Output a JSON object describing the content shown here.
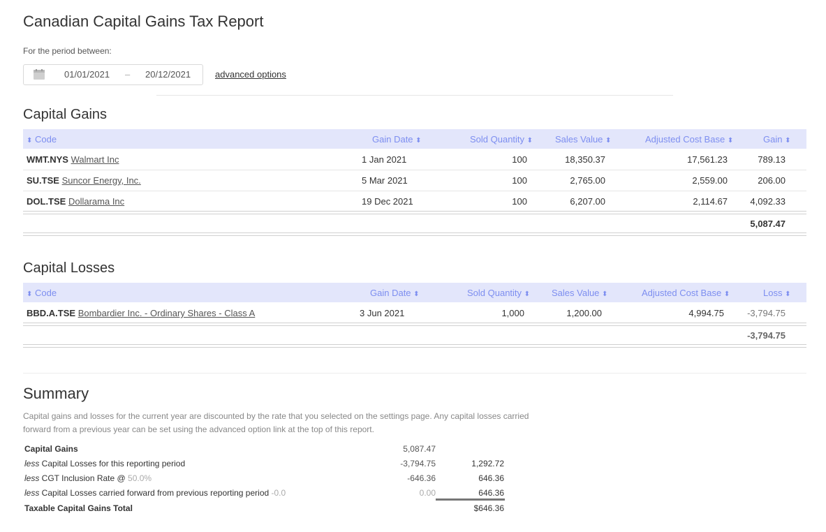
{
  "title": "Canadian Capital Gains Tax Report",
  "period": {
    "label": "For the period between:",
    "from": "01/01/2021",
    "sep": "–",
    "to": "20/12/2021",
    "advanced": "advanced options"
  },
  "gains": {
    "title": "Capital Gains",
    "headers": {
      "code": "Code",
      "date": "Gain Date",
      "qty": "Sold Quantity",
      "sales": "Sales Value",
      "acb": "Adjusted Cost Base",
      "result": "Gain"
    },
    "sort_icon": "sort-icon",
    "rows": [
      {
        "code": "WMT.NYS",
        "name": "Walmart Inc",
        "date": "1 Jan 2021",
        "qty": "100",
        "sales": "18,350.37",
        "acb": "17,561.23",
        "result": "789.13"
      },
      {
        "code": "SU.TSE",
        "name": "Suncor Energy, Inc.",
        "date": "5 Mar 2021",
        "qty": "100",
        "sales": "2,765.00",
        "acb": "2,559.00",
        "result": "206.00"
      },
      {
        "code": "DOL.TSE",
        "name": "Dollarama Inc",
        "date": "19 Dec 2021",
        "qty": "100",
        "sales": "6,207.00",
        "acb": "2,114.67",
        "result": "4,092.33"
      }
    ],
    "total": "5,087.47"
  },
  "losses": {
    "title": "Capital Losses",
    "headers": {
      "code": "Code",
      "date": "Gain Date",
      "qty": "Sold Quantity",
      "sales": "Sales Value",
      "acb": "Adjusted Cost Base",
      "result": "Loss"
    },
    "rows": [
      {
        "code": "BBD.A.TSE",
        "name": "Bombardier Inc. - Ordinary Shares - Class A",
        "date": "3 Jun 2021",
        "qty": "1,000",
        "sales": "1,200.00",
        "acb": "4,994.75",
        "result": "-3,794.75"
      }
    ],
    "total": "-3,794.75"
  },
  "summary": {
    "title": "Summary",
    "desc": "Capital gains and losses for the current year are discounted by the rate that you selected on the settings page. Any capital losses carried forward from a previous year can be set using the advanced option link at the top of this report.",
    "lines": [
      {
        "label_bold": "Capital Gains",
        "v1": "5,087.47",
        "v2": ""
      },
      {
        "label_em": "less",
        "label_rest": " Capital Losses for this reporting period",
        "suffix": "",
        "v1": "-3,794.75",
        "v2": "1,292.72"
      },
      {
        "label_em": "less",
        "label_rest": " CGT Inclusion Rate @ ",
        "suffix": "50.0%",
        "v1": "-646.36",
        "v2": "646.36"
      },
      {
        "label_em": "less",
        "label_rest": " Capital Losses carried forward from previous reporting period ",
        "suffix": "-0.0",
        "v1": "0.00",
        "v2": "646.36"
      },
      {
        "label_bold": "Taxable Capital Gains Total",
        "v1": "",
        "v2": "$646.36"
      }
    ]
  },
  "colors": {
    "header_bg": "#e3e6fb",
    "header_text": "#7d8ef0"
  }
}
